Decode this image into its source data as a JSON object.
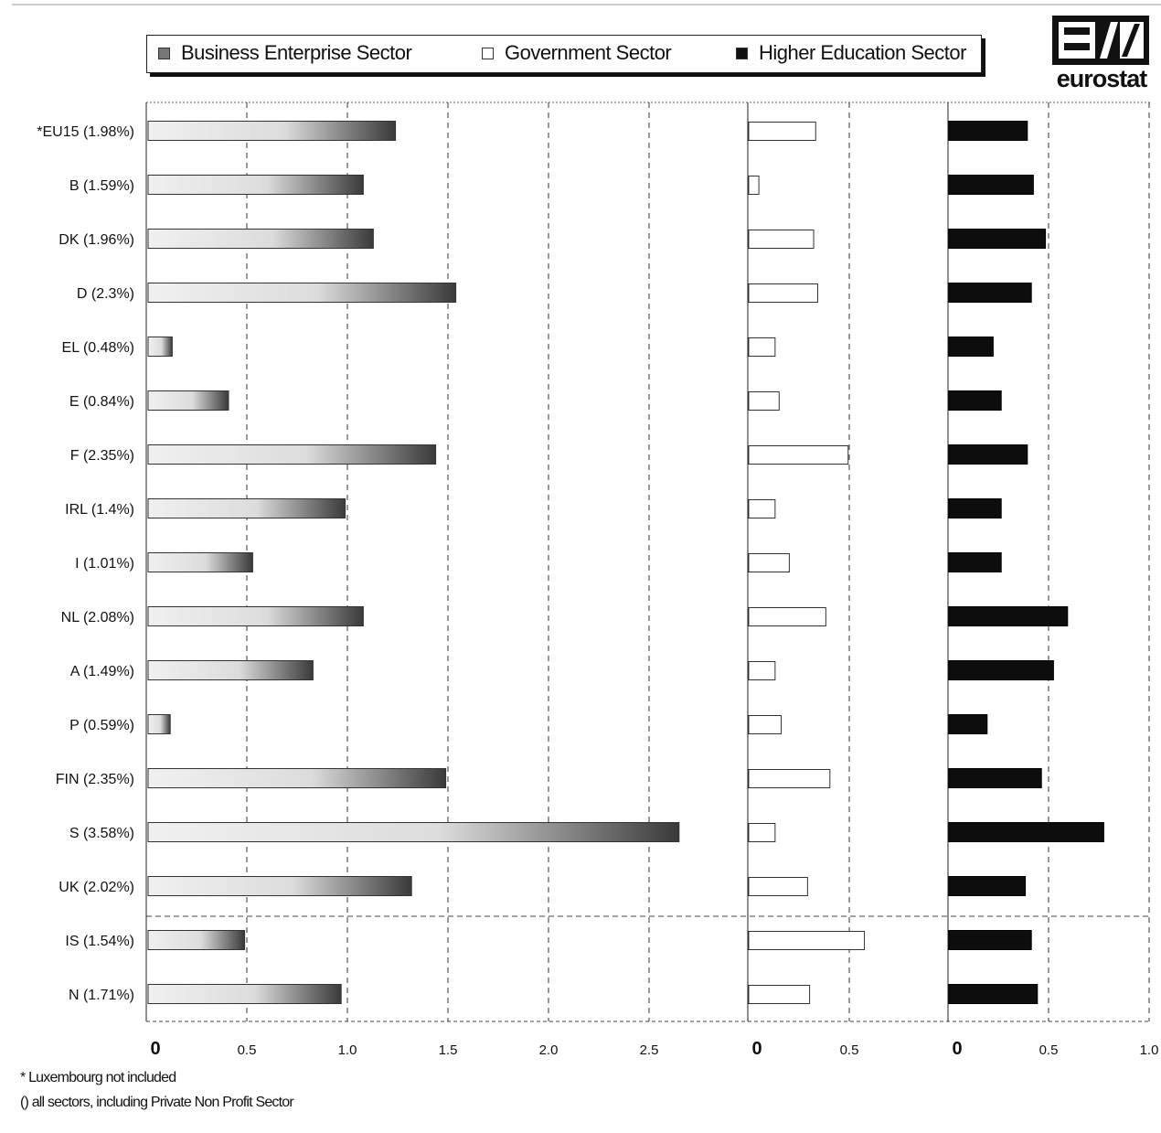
{
  "legend": {
    "business": "Business Enterprise Sector",
    "government": "Government Sector",
    "higher": "Higher Education Sector"
  },
  "logo": {
    "text": "eurostat"
  },
  "notes": {
    "asterisk": "* Luxembourg not included",
    "parens": "() all sectors, including Private Non Profit Sector"
  },
  "colors": {
    "business_dark": "#3a3a3a",
    "business_light": "#f0f0f0",
    "government": "#ffffff",
    "higher": "#0d0d0d",
    "grid": "#333333"
  },
  "chart_data": [
    {
      "type": "bar",
      "orientation": "horizontal",
      "name": "Business Enterprise Sector",
      "categories": [
        "*EU15 (1.98%)",
        "B  (1.59%)",
        "DK  (1.96%)",
        "D  (2.3%)",
        "EL  (0.48%)",
        "E  (0.84%)",
        "F  (2.35%)",
        "IRL  (1.4%)",
        "I  (1.01%)",
        "NL  (2.08%)",
        "A  (1.49%)",
        "P  (0.59%)",
        "FIN  (2.35%)",
        "S  (3.58%)",
        "UK (2.02%)",
        "IS (1.54%)",
        "N (1.71%)"
      ],
      "values": [
        1.23,
        1.07,
        1.12,
        1.53,
        0.12,
        0.4,
        1.43,
        0.98,
        0.52,
        1.07,
        0.82,
        0.11,
        1.48,
        2.64,
        1.31,
        0.48,
        0.96
      ],
      "xlim": [
        0,
        3.0
      ],
      "xticks": [
        "0",
        "0.5",
        "1.0",
        "1.5",
        "2.0",
        "2.5"
      ],
      "grid": true
    },
    {
      "type": "bar",
      "orientation": "horizontal",
      "name": "Government Sector",
      "values": [
        0.33,
        0.05,
        0.32,
        0.34,
        0.13,
        0.15,
        0.49,
        0.13,
        0.2,
        0.38,
        0.13,
        0.16,
        0.4,
        0.13,
        0.29,
        0.57,
        0.3
      ],
      "xlim": [
        0,
        1.0
      ],
      "xticks": [
        "0",
        "0.5"
      ],
      "grid": true
    },
    {
      "type": "bar",
      "orientation": "horizontal",
      "name": "Higher Education Sector",
      "values": [
        0.39,
        0.42,
        0.48,
        0.41,
        0.22,
        0.26,
        0.39,
        0.26,
        0.26,
        0.59,
        0.52,
        0.19,
        0.46,
        0.77,
        0.38,
        0.41,
        0.44
      ],
      "xlim": [
        0,
        1.0
      ],
      "xticks": [
        "0",
        "0.5",
        "1.0"
      ],
      "grid": true
    }
  ]
}
